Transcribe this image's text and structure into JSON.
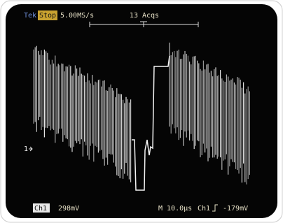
{
  "header": {
    "brand": "Tek",
    "state": "Stop",
    "sample_rate": "5.00MS/s",
    "acquisitions": "13 Acqs"
  },
  "channel_marker": "1",
  "footer": {
    "channel": "Ch1",
    "scale": "298mV",
    "timebase": "M 10.0µs",
    "trigger_source": "Ch1",
    "trigger_level": "-179mV"
  }
}
